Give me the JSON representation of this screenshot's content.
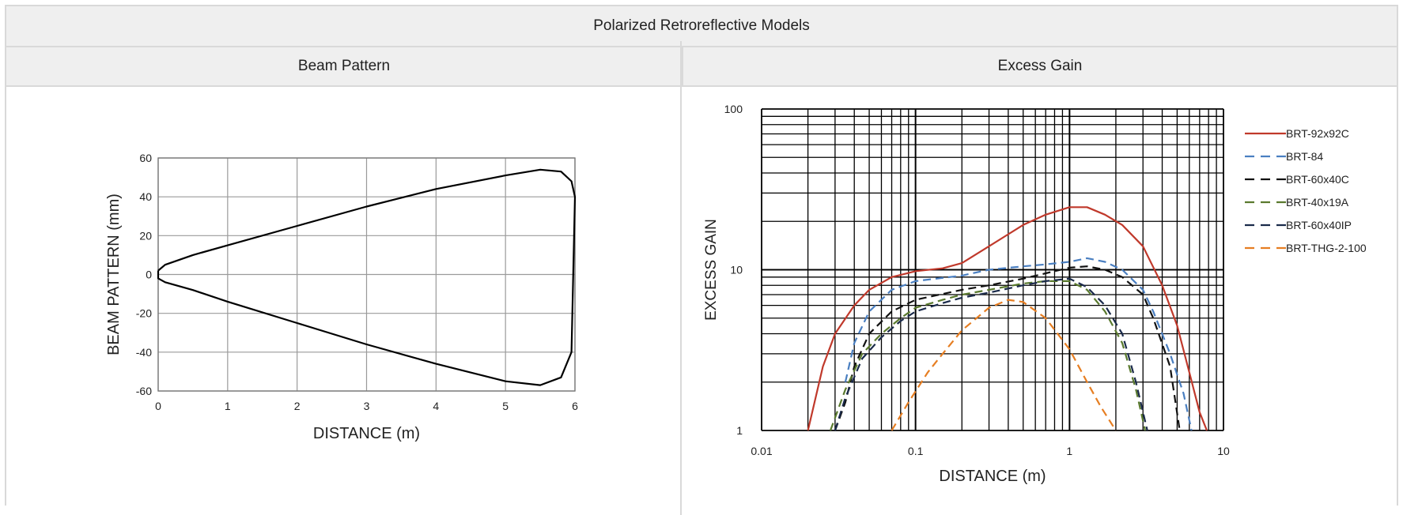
{
  "page_title": "Polarized Retroreflective Models",
  "columns": {
    "left": "Beam Pattern",
    "right": "Excess Gain"
  },
  "chart_data": [
    {
      "type": "line",
      "title": "",
      "xlabel": "DISTANCE (m)",
      "ylabel": "BEAM PATTERN (mm)",
      "xlim": [
        0,
        6
      ],
      "ylim": [
        -60,
        60
      ],
      "x_ticks": [
        "0",
        "1",
        "2",
        "3",
        "4",
        "5",
        "6"
      ],
      "y_ticks": [
        "60",
        "40",
        "20",
        "0",
        "-20",
        "-40",
        "-60"
      ],
      "grid": true,
      "series": [
        {
          "color": "#000000",
          "x": [
            0,
            0.1,
            0.5,
            1,
            2,
            3,
            4,
            5,
            5.5,
            5.8,
            5.95,
            6,
            5.95,
            5.8,
            5.5,
            5,
            4,
            3,
            2,
            1,
            0.5,
            0.1,
            0,
            0
          ],
          "values": [
            2,
            5,
            10,
            15,
            25,
            35,
            44,
            51,
            54,
            53,
            48,
            40,
            -40,
            -53,
            -57,
            -55,
            -46,
            -36,
            -25,
            -14,
            -8,
            -4,
            -2,
            2
          ]
        }
      ]
    },
    {
      "type": "line",
      "title": "",
      "xlabel": "DISTANCE (m)",
      "ylabel": "EXCESS GAIN",
      "x_scale": "log",
      "y_scale": "log",
      "xlim": [
        0.01,
        10
      ],
      "ylim": [
        1,
        100
      ],
      "x_ticks": [
        "0.01",
        "0.1",
        "1",
        "10"
      ],
      "y_ticks": [
        "100",
        "10",
        "1"
      ],
      "grid": true,
      "legend": "right",
      "series": [
        {
          "name": "BRT-92x92C",
          "color": "#c0392b",
          "dash": "solid",
          "x": [
            0.02,
            0.025,
            0.03,
            0.04,
            0.05,
            0.07,
            0.1,
            0.15,
            0.2,
            0.3,
            0.5,
            0.7,
            1,
            1.3,
            1.7,
            2.2,
            3,
            4,
            5,
            6,
            7,
            7.8
          ],
          "values": [
            1,
            2.5,
            4,
            6,
            7.5,
            9,
            9.8,
            10.2,
            11,
            14,
            19,
            22,
            24.5,
            24.5,
            22,
            19,
            14,
            8,
            4.5,
            2.3,
            1.3,
            1
          ]
        },
        {
          "name": "BRT-84",
          "color": "#4a7fc1",
          "dash": "10,6",
          "x": [
            0.035,
            0.04,
            0.05,
            0.07,
            0.1,
            0.2,
            0.3,
            0.5,
            0.7,
            1,
            1.3,
            1.7,
            2.2,
            3,
            3.5,
            4.5,
            5.5,
            6.2
          ],
          "values": [
            2,
            3.5,
            5.5,
            7.5,
            8.5,
            9.2,
            10,
            10.5,
            10.8,
            11.2,
            11.8,
            11.2,
            10,
            7.5,
            5.5,
            3,
            1.7,
            1
          ]
        },
        {
          "name": "BRT-60x40C",
          "color": "#111111",
          "dash": "10,6",
          "x": [
            0.03,
            0.035,
            0.04,
            0.05,
            0.07,
            0.1,
            0.2,
            0.3,
            0.5,
            0.7,
            1,
            1.3,
            1.7,
            2.2,
            3,
            3.5,
            4.5,
            5.2
          ],
          "values": [
            1,
            1.5,
            2.5,
            4,
            5.5,
            6.5,
            7.5,
            8,
            8.8,
            9.5,
            10.3,
            10.5,
            10,
            9,
            7,
            5,
            2.5,
            1
          ]
        },
        {
          "name": "BRT-40x19A",
          "color": "#5a7a2e",
          "dash": "10,6",
          "x": [
            0.028,
            0.035,
            0.045,
            0.06,
            0.08,
            0.1,
            0.15,
            0.2,
            0.3,
            0.5,
            0.7,
            1,
            1.3,
            1.7,
            2.2,
            2.7,
            3.1
          ],
          "values": [
            1,
            1.8,
            3,
            4,
            5,
            5.8,
            6.5,
            7,
            7.5,
            8.2,
            8.5,
            8.5,
            7.5,
            5.5,
            3.5,
            1.8,
            1
          ]
        },
        {
          "name": "BRT-60x40IP",
          "color": "#1a2a4a",
          "dash": "10,6",
          "x": [
            0.03,
            0.035,
            0.045,
            0.06,
            0.08,
            0.1,
            0.15,
            0.2,
            0.3,
            0.5,
            0.7,
            1,
            1.3,
            1.7,
            2.2,
            2.7,
            3.2
          ],
          "values": [
            1,
            1.6,
            2.8,
            3.8,
            4.8,
            5.5,
            6.2,
            6.7,
            7.2,
            8,
            8.5,
            8.8,
            7.8,
            6,
            4,
            2,
            1
          ]
        },
        {
          "name": "BRT-THG-2-100",
          "color": "#e67e22",
          "dash": "10,6",
          "x": [
            0.07,
            0.09,
            0.12,
            0.15,
            0.2,
            0.3,
            0.4,
            0.5,
            0.7,
            1,
            1.3,
            1.6,
            2
          ],
          "values": [
            1,
            1.5,
            2.3,
            3,
            4.2,
            5.8,
            6.5,
            6.3,
            5,
            3.2,
            2,
            1.4,
            1
          ]
        }
      ]
    }
  ]
}
